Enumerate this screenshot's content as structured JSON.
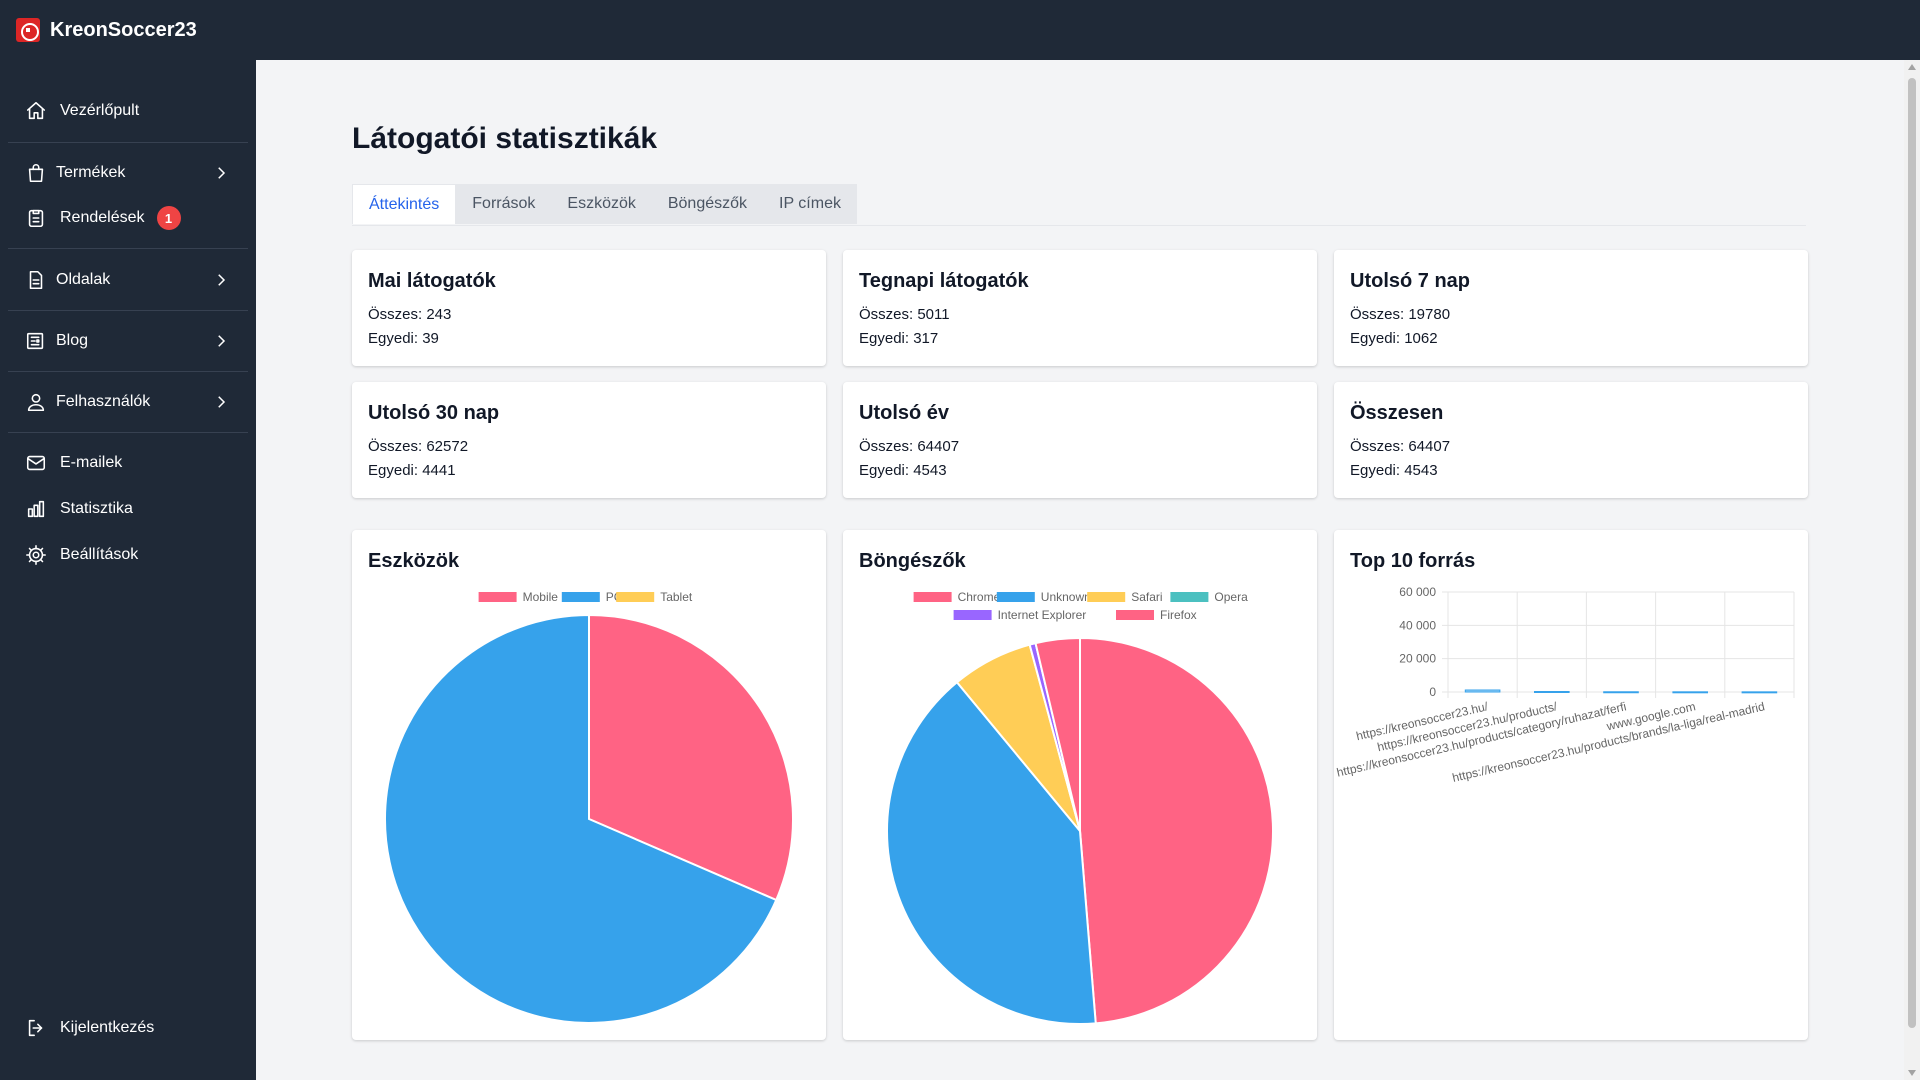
{
  "app": {
    "name": "KreonSoccer23"
  },
  "sidebar": {
    "items": [
      {
        "label": "Vezérlőpult",
        "icon": "home-icon"
      },
      {
        "label": "Termékek",
        "icon": "shopping-bag-icon",
        "has_submenu": true
      },
      {
        "label": "Rendelések",
        "icon": "clipboard-icon",
        "badge": "1"
      },
      {
        "label": "Oldalak",
        "icon": "document-icon",
        "has_submenu": true
      },
      {
        "label": "Blog",
        "icon": "newspaper-icon",
        "has_submenu": true
      },
      {
        "label": "Felhasználók",
        "icon": "users-icon",
        "has_submenu": true
      },
      {
        "label": "E-mailek",
        "icon": "envelope-icon"
      },
      {
        "label": "Statisztika",
        "icon": "bar-chart-icon"
      },
      {
        "label": "Beállítások",
        "icon": "gear-icon"
      }
    ],
    "logout": {
      "label": "Kijelentkezés",
      "icon": "logout-icon"
    }
  },
  "page": {
    "title": "Látogatói statisztikák",
    "tabs": [
      "Áttekintés",
      "Források",
      "Eszközök",
      "Böngészők",
      "IP címek"
    ],
    "active_tab": "Áttekintés"
  },
  "stats": [
    {
      "title": "Mai látogatók",
      "total": "Összes: 243",
      "unique": "Egyedi: 39"
    },
    {
      "title": "Tegnapi látogatók",
      "total": "Összes: 5011",
      "unique": "Egyedi: 317"
    },
    {
      "title": "Utolsó 7 nap",
      "total": "Összes: 19780",
      "unique": "Egyedi: 1062"
    },
    {
      "title": "Utolsó 30 nap",
      "total": "Összes: 62572",
      "unique": "Egyedi: 4441"
    },
    {
      "title": "Utolsó év",
      "total": "Összes: 64407",
      "unique": "Egyedi: 4543"
    },
    {
      "title": "Összesen",
      "total": "Összes: 64407",
      "unique": "Egyedi: 4543"
    }
  ],
  "colors": {
    "topbar": "#1f2937",
    "accent": "#2563eb",
    "badge": "#ef4444",
    "pink": "#ff6384",
    "blue": "#36a2eb",
    "yellow": "#ffcd56",
    "teal": "#4bc0c0",
    "purple": "#9966ff"
  },
  "chart_data": [
    {
      "type": "pie",
      "title": "Eszközök",
      "categories": [
        "Mobile",
        "PC",
        "Tablet"
      ],
      "values": [
        31.5,
        68.5,
        0
      ],
      "colors": [
        "#ff6384",
        "#36a2eb",
        "#ffcd56"
      ],
      "legend": "top"
    },
    {
      "type": "pie",
      "title": "Böngészők",
      "categories": [
        "Chrome",
        "Unknown",
        "Safari",
        "Opera",
        "Internet Explorer",
        "Firefox"
      ],
      "values": [
        48.7,
        40.3,
        6.8,
        0,
        0.5,
        3.7
      ],
      "colors": [
        "#ff6384",
        "#36a2eb",
        "#ffcd56",
        "#4bc0c0",
        "#9966ff",
        "#ff6384"
      ],
      "legend": "top"
    },
    {
      "type": "bar",
      "title": "Top 10 forrás",
      "categories": [
        "https://kreonsoccer23.hu/",
        "https://kreonsoccer23.hu/products/",
        "https://kreonsoccer23.hu/products/category/ruhazat/ferfi",
        "www.google.com",
        "https://kreonsoccer23.hu/products/brands/la-liga/real-madrid"
      ],
      "values": [
        1200,
        300,
        150,
        120,
        100
      ],
      "ylim": [
        0,
        60000
      ],
      "yticks": [
        "60 000",
        "40 000",
        "20 000",
        "0"
      ],
      "ytick_values": [
        60000,
        40000,
        20000,
        0
      ],
      "grid": true
    }
  ]
}
